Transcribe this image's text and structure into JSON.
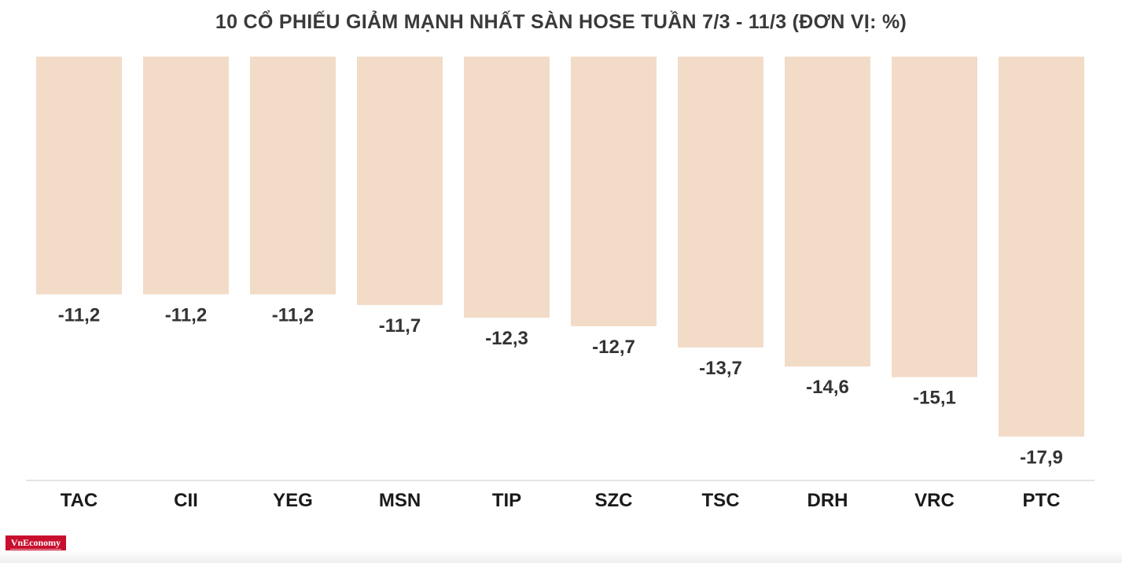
{
  "chart_data": {
    "type": "bar",
    "title": "10 CỔ PHIẾU GIẢM MẠNH NHẤT SÀN HOSE TUẦN 7/3 - 11/3 (ĐƠN VỊ: %)",
    "categories": [
      "TAC",
      "CII",
      "YEG",
      "MSN",
      "TIP",
      "SZC",
      "TSC",
      "DRH",
      "VRC",
      "PTC"
    ],
    "values": [
      -11.2,
      -11.2,
      -11.2,
      -11.7,
      -12.3,
      -12.7,
      -13.7,
      -14.6,
      -15.1,
      -17.9
    ],
    "value_labels": [
      "-11,2",
      "-11,2",
      "-11,2",
      "-11,7",
      "-12,3",
      "-12,7",
      "-13,7",
      "-14,6",
      "-15,1",
      "-17,9"
    ],
    "ylim": [
      -20,
      0
    ],
    "grid": false,
    "legend": "none",
    "colors": {
      "bar": "#f2dcc8",
      "labels": "#333333"
    }
  },
  "branding": {
    "logo_text": "VnEconomy",
    "logo_color": "#c8102e"
  }
}
